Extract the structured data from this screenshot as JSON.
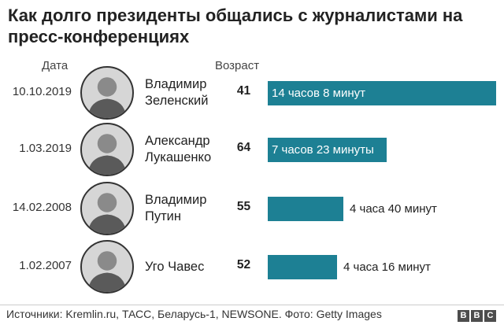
{
  "title": "Как долго президенты общались с журналистами на пресс-конференциях",
  "headers": {
    "date": "Дата",
    "age": "Возраст"
  },
  "colors": {
    "bar": "#1d8094",
    "photo_bg": "#d6d6d6"
  },
  "chart_data": {
    "type": "bar",
    "orientation": "horizontal",
    "categories": [
      "Владимир Зеленский",
      "Александр Лукашенко",
      "Владимир Путин",
      "Уго Чавес"
    ],
    "values_minutes": [
      848,
      443,
      280,
      256
    ],
    "xlim": [
      0,
      848
    ],
    "rows": [
      {
        "date": "10.10.2019",
        "name_line1": "Владимир",
        "name_line2": "Зеленский",
        "age": "41",
        "minutes": 848,
        "label": "14 часов 8 минут",
        "label_inside": true,
        "photo": "zelensky-photo"
      },
      {
        "date": "1.03.2019",
        "name_line1": "Александр",
        "name_line2": "Лукашенко",
        "age": "64",
        "minutes": 443,
        "label": "7 часов 23 минуты",
        "label_inside": true,
        "photo": "lukashenko-photo"
      },
      {
        "date": "14.02.2008",
        "name_line1": "Владимир",
        "name_line2": "Путин",
        "age": "55",
        "minutes": 280,
        "label": "4 часа 40 минут",
        "label_inside": false,
        "photo": "putin-photo"
      },
      {
        "date": "1.02.2007",
        "name_line1": "Уго Чавес",
        "name_line2": "",
        "age": "52",
        "minutes": 256,
        "label": "4 часа 16 минут",
        "label_inside": false,
        "photo": "chavez-photo"
      }
    ]
  },
  "footer": {
    "source": "Источники: Kremlin.ru, ТАСС, Беларусь-1, NEWSONE. Фото: Getty Images",
    "logo_letters": [
      "B",
      "B",
      "C"
    ]
  }
}
